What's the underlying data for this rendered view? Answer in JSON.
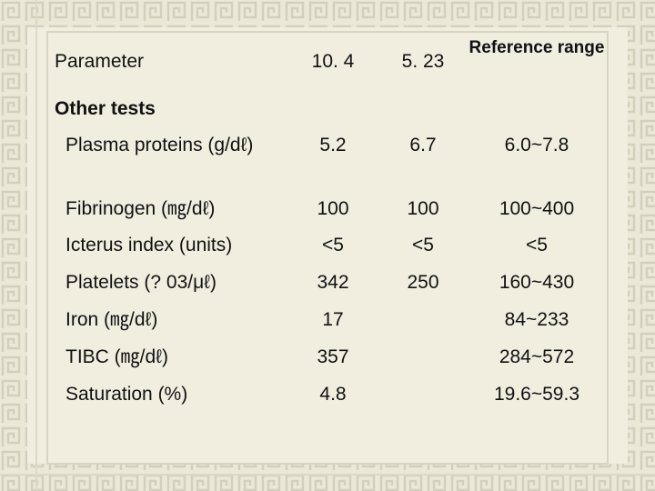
{
  "table": {
    "header": [
      "Parameter",
      "10. 4",
      "5. 23",
      "Reference range"
    ],
    "section": "Other tests",
    "rows": [
      [
        "Plasma proteins (g/dℓ)",
        "5.2",
        "6.7",
        "6.0~7.8"
      ],
      [
        "Fibrinogen (㎎/dℓ)",
        "100",
        "100",
        "100~400"
      ],
      [
        "Icterus index (units)",
        "<5",
        "<5",
        "<5"
      ],
      [
        "Platelets (? 03/μℓ)",
        "342",
        "250",
        "160~430"
      ],
      [
        "Iron (㎎/dℓ)",
        "17",
        null,
        "84~233"
      ],
      [
        "TIBC (㎎/dℓ)",
        "357",
        null,
        "284~572"
      ],
      [
        "Saturation (%)",
        "4.8",
        null,
        "19.6~59.3"
      ]
    ]
  }
}
